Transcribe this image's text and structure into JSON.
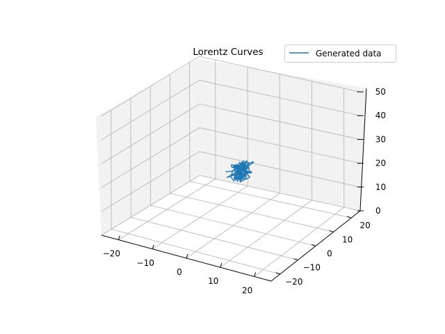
{
  "chart_data": {
    "type": "line",
    "projection": "3d",
    "title": "Lorentz Curves",
    "xlabel": "",
    "ylabel": "",
    "zlabel": "",
    "xlim": [
      -25,
      25
    ],
    "ylim": [
      -25,
      25
    ],
    "zlim": [
      0,
      50
    ],
    "x_ticks": [
      -20,
      -10,
      0,
      10,
      20
    ],
    "y_ticks": [
      -20,
      -10,
      0,
      10,
      20
    ],
    "z_ticks": [
      0,
      10,
      20,
      30,
      40,
      50
    ],
    "x_tick_labels": [
      "−20",
      "−10",
      "0",
      "10",
      "20"
    ],
    "y_tick_labels": [
      "−20",
      "−10",
      "0",
      "10",
      "20"
    ],
    "z_tick_labels": [
      "0",
      "10",
      "20",
      "30",
      "40",
      "50"
    ],
    "grid": true,
    "legend": {
      "placement": "top-right",
      "entries": [
        "Generated data"
      ]
    },
    "series": [
      {
        "name": "Generated data",
        "color": "#1f77b4",
        "center": [
          1.5,
          1.5,
          22.5
        ],
        "extent": [
          3.0,
          3.0,
          3.5
        ]
      }
    ]
  },
  "colors": {
    "pane_left": "#f2f2f2",
    "pane_back": "#f2f2f2",
    "pane_floor": "#ffffff",
    "grid": "#b0b0b0",
    "axis": "#000000",
    "legend_border": "#cccccc"
  }
}
